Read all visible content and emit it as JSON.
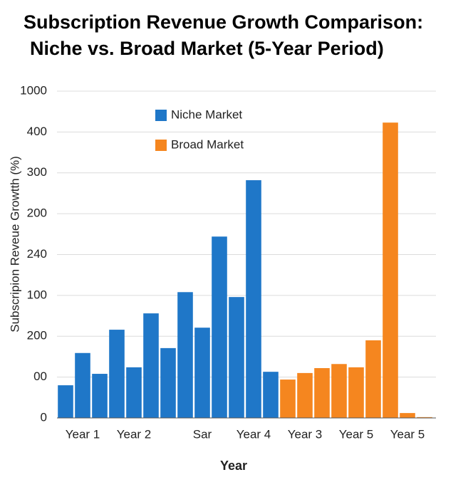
{
  "chart_data": {
    "type": "bar",
    "title": [
      "Subscription Revenue Growth Comparison:",
      "Niche vs. Broad Market (5-Year Period)"
    ],
    "y_label": "Subscripion Reveue Growtth (%)",
    "x_label": "Year",
    "categories": [
      null,
      "Year 1",
      null,
      null,
      "Year 2",
      null,
      null,
      null,
      "Sar",
      null,
      null,
      "Year 4",
      null,
      null,
      "Year 3",
      null,
      null,
      "Year 5",
      null,
      null,
      "Year 5",
      null
    ],
    "series": [
      {
        "name": "Niche Market",
        "color": "#1f77c8",
        "values": [
          0.8,
          1.59,
          1.08,
          2.16,
          1.24,
          2.56,
          1.71,
          3.08,
          2.21,
          4.44,
          2.96,
          5.82,
          1.13,
          null,
          null,
          null,
          null,
          null,
          null,
          null,
          null,
          null
        ]
      },
      {
        "name": "Broad Market",
        "color": "#f5861f",
        "values": [
          null,
          null,
          null,
          null,
          null,
          null,
          null,
          null,
          null,
          null,
          null,
          null,
          null,
          0.94,
          1.1,
          1.22,
          1.32,
          1.24,
          1.9,
          7.23,
          0.12,
          0.02
        ]
      }
    ],
    "ylim": [
      0,
      8
    ],
    "yticks": [
      {
        "value": 0,
        "label": "0"
      },
      {
        "value": 1,
        "label": "00"
      },
      {
        "value": 2,
        "label": "200"
      },
      {
        "value": 3,
        "label": "100"
      },
      {
        "value": 4,
        "label": "240"
      },
      {
        "value": 5,
        "label": "200"
      },
      {
        "value": 6,
        "label": "300"
      },
      {
        "value": 7,
        "label": "400"
      },
      {
        "value": 8,
        "label": "1000"
      }
    ],
    "grid": true,
    "legend": "top"
  }
}
